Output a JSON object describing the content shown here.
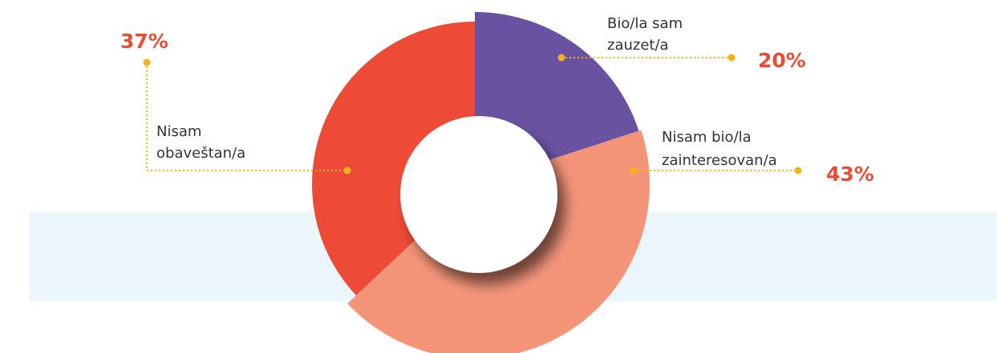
{
  "chart_data": {
    "type": "pie",
    "categories": [
      [
        "Bio/la sam",
        "zauzet/a"
      ],
      [
        "Nisam bio/la",
        "zainteresovan/a"
      ],
      [
        "Nisam",
        "obaveštan/a"
      ]
    ],
    "values": [
      20,
      43,
      37
    ],
    "value_labels": [
      "20%",
      "43%",
      "37%"
    ],
    "colors": [
      "#6a52a2",
      "#f4957a",
      "#ee4b37"
    ]
  }
}
